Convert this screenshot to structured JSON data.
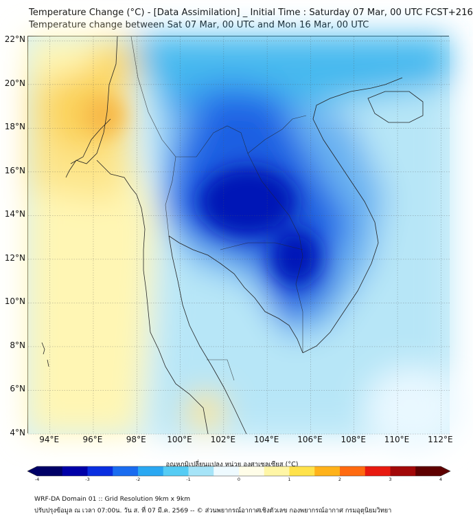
{
  "title_line1": "Temperature Change (°C) - [Data Assimilation] _ Initial Time : Saturday 07 Mar, 00 UTC FCST+216",
  "title_line2": "Temperature change between Sat 07 Mar, 00 UTC and Mon 16 Mar, 00 UTC",
  "map": {
    "lon_range": [
      93,
      112.4
    ],
    "lat_range": [
      4,
      22.2
    ],
    "lat_ticks": [
      {
        "value": 22,
        "label": "22°N"
      },
      {
        "value": 20,
        "label": "20°N"
      },
      {
        "value": 18,
        "label": "18°N"
      },
      {
        "value": 16,
        "label": "16°N"
      },
      {
        "value": 14,
        "label": "14°N"
      },
      {
        "value": 12,
        "label": "12°N"
      },
      {
        "value": 10,
        "label": "10°N"
      },
      {
        "value": 8,
        "label": "8°N"
      },
      {
        "value": 6,
        "label": "6°N"
      },
      {
        "value": 4,
        "label": "4°N"
      }
    ],
    "lon_ticks": [
      {
        "value": 94,
        "label": "94°E"
      },
      {
        "value": 96,
        "label": "96°E"
      },
      {
        "value": 98,
        "label": "98°E"
      },
      {
        "value": 100,
        "label": "100°E"
      },
      {
        "value": 102,
        "label": "102°E"
      },
      {
        "value": 104,
        "label": "104°E"
      },
      {
        "value": 106,
        "label": "106°E"
      },
      {
        "value": 108,
        "label": "108°E"
      },
      {
        "value": 110,
        "label": "110°E"
      },
      {
        "value": 112,
        "label": "112°E"
      }
    ],
    "gridlines": true
  },
  "colorbar": {
    "title": "อุณหภูมิเปลี่ยนแปลง หน่วย องศาเซลเซียส (°C)",
    "min": -4,
    "max": 4,
    "ticks": [
      "-4",
      "-3",
      "-2",
      "-1",
      "0",
      "1",
      "2",
      "3",
      "4"
    ],
    "colors": [
      "#000066",
      "#0000a8",
      "#0a2ee0",
      "#1a6cf0",
      "#2aa8f2",
      "#56ccf4",
      "#a6e4f8",
      "#eefaff",
      "#fffde8",
      "#fff6a6",
      "#ffe24a",
      "#ffb21a",
      "#ff6a10",
      "#e81a10",
      "#a20808",
      "#5e0000"
    ]
  },
  "footer_line1": "WRF-DA Domain 01 :: Grid Resolution 9km x 9km",
  "footer_line2": "ปรับปรุงข้อมูล ณ เวลา 07:00น. วัน ส. ที่ 07 มี.ค. 2569 -- © ส่วนพยากรณ์อากาศเชิงตัวเลข กองพยากรณ์อากาศ กรมอุตุนิยมวิทยา"
}
